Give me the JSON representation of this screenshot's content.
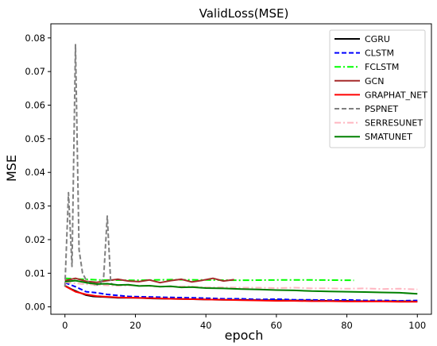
{
  "chart_data": {
    "type": "line",
    "title": "ValidLoss(MSE)",
    "xlabel": "epoch",
    "ylabel": "MSE",
    "xlim": [
      -4,
      104
    ],
    "ylim": [
      -0.0022,
      0.0842
    ],
    "xticks": [
      0,
      20,
      40,
      60,
      80,
      100
    ],
    "yticks": [
      0.0,
      0.01,
      0.02,
      0.03,
      0.04,
      0.05,
      0.06,
      0.07,
      0.08
    ],
    "ytick_labels": [
      "0.00",
      "0.01",
      "0.02",
      "0.03",
      "0.04",
      "0.05",
      "0.06",
      "0.07",
      "0.08"
    ],
    "grid": false,
    "legend_position": "top-right",
    "series": [
      {
        "name": "CGRU",
        "color": "#000000",
        "dash": "solid",
        "points": [
          [
            0,
            0.0063
          ],
          [
            2,
            0.0052
          ],
          [
            4,
            0.0043
          ],
          [
            6,
            0.0035
          ],
          [
            8,
            0.0031
          ],
          [
            10,
            0.003
          ],
          [
            12,
            0.0029
          ],
          [
            15,
            0.0027
          ],
          [
            20,
            0.0027
          ],
          [
            25,
            0.0025
          ],
          [
            30,
            0.0024
          ],
          [
            35,
            0.0023
          ],
          [
            40,
            0.0022
          ],
          [
            45,
            0.0021
          ],
          [
            50,
            0.0021
          ],
          [
            55,
            0.002
          ],
          [
            60,
            0.002
          ],
          [
            65,
            0.0019
          ],
          [
            70,
            0.0019
          ],
          [
            75,
            0.0018
          ],
          [
            80,
            0.0018
          ],
          [
            85,
            0.0017
          ],
          [
            90,
            0.0017
          ],
          [
            95,
            0.0017
          ],
          [
            100,
            0.0016
          ]
        ]
      },
      {
        "name": "CLSTM",
        "color": "#0000ff",
        "dash": "dashed",
        "points": [
          [
            0,
            0.0072
          ],
          [
            3,
            0.006
          ],
          [
            6,
            0.0045
          ],
          [
            9,
            0.0042
          ],
          [
            12,
            0.0037
          ],
          [
            15,
            0.0034
          ],
          [
            18,
            0.0031
          ],
          [
            22,
            0.003
          ],
          [
            26,
            0.0029
          ],
          [
            30,
            0.0028
          ],
          [
            35,
            0.0027
          ],
          [
            40,
            0.0026
          ],
          [
            45,
            0.0024
          ],
          [
            50,
            0.0024
          ],
          [
            55,
            0.0022
          ],
          [
            60,
            0.0023
          ],
          [
            65,
            0.0021
          ],
          [
            70,
            0.0021
          ],
          [
            75,
            0.002
          ],
          [
            80,
            0.0021
          ],
          [
            85,
            0.0019
          ],
          [
            90,
            0.0019
          ],
          [
            95,
            0.0018
          ],
          [
            100,
            0.0019
          ]
        ]
      },
      {
        "name": "FCLSTM",
        "color": "#00ff00",
        "dash": "dashdot",
        "points": [
          [
            0,
            0.0085
          ],
          [
            5,
            0.0082
          ],
          [
            10,
            0.008
          ],
          [
            20,
            0.0079
          ],
          [
            30,
            0.0081
          ],
          [
            40,
            0.008
          ],
          [
            50,
            0.0079
          ],
          [
            60,
            0.008
          ],
          [
            70,
            0.008
          ],
          [
            82,
            0.0079
          ]
        ]
      },
      {
        "name": "GCN",
        "color": "#a52a2a",
        "dash": "solid",
        "points": [
          [
            0,
            0.0078
          ],
          [
            3,
            0.0085
          ],
          [
            6,
            0.0076
          ],
          [
            9,
            0.0073
          ],
          [
            12,
            0.0078
          ],
          [
            15,
            0.0082
          ],
          [
            18,
            0.0077
          ],
          [
            21,
            0.0075
          ],
          [
            24,
            0.008
          ],
          [
            27,
            0.0072
          ],
          [
            30,
            0.0078
          ],
          [
            33,
            0.0082
          ],
          [
            36,
            0.0074
          ],
          [
            39,
            0.0079
          ],
          [
            42,
            0.0085
          ],
          [
            45,
            0.0077
          ],
          [
            48,
            0.0081
          ]
        ]
      },
      {
        "name": "GRAPHAT_NET",
        "color": "#ff0000",
        "dash": "solid",
        "points": [
          [
            0,
            0.0062
          ],
          [
            3,
            0.0045
          ],
          [
            6,
            0.0037
          ],
          [
            9,
            0.0032
          ],
          [
            12,
            0.003
          ],
          [
            15,
            0.0028
          ],
          [
            20,
            0.0027
          ],
          [
            25,
            0.0026
          ],
          [
            30,
            0.0024
          ],
          [
            35,
            0.0023
          ],
          [
            40,
            0.0022
          ],
          [
            45,
            0.0021
          ],
          [
            50,
            0.002
          ],
          [
            55,
            0.0019
          ],
          [
            60,
            0.0018
          ],
          [
            65,
            0.0018
          ],
          [
            70,
            0.0017
          ],
          [
            75,
            0.0017
          ],
          [
            80,
            0.0016
          ],
          [
            85,
            0.0016
          ],
          [
            90,
            0.0016
          ],
          [
            95,
            0.0015
          ],
          [
            100,
            0.0015
          ]
        ]
      },
      {
        "name": "PSPNET",
        "color": "#808080",
        "dash": "dashed",
        "points": [
          [
            0,
            0.006
          ],
          [
            1,
            0.034
          ],
          [
            2,
            0.012
          ],
          [
            3,
            0.078
          ],
          [
            4,
            0.017
          ],
          [
            5,
            0.01
          ],
          [
            6,
            0.008
          ],
          [
            7,
            0.007
          ],
          [
            8,
            0.0065
          ],
          [
            9,
            0.0065
          ],
          [
            10,
            0.0068
          ],
          [
            11,
            0.009
          ],
          [
            12,
            0.027
          ],
          [
            13,
            0.007
          ],
          [
            14,
            0.0065
          ]
        ]
      },
      {
        "name": "SERRESUNET",
        "color": "#ffb6c1",
        "dash": "dashdot",
        "points": [
          [
            0,
            0.0073
          ],
          [
            5,
            0.0068
          ],
          [
            10,
            0.0065
          ],
          [
            15,
            0.0063
          ],
          [
            20,
            0.0064
          ],
          [
            25,
            0.0061
          ],
          [
            30,
            0.006
          ],
          [
            35,
            0.0061
          ],
          [
            40,
            0.0058
          ],
          [
            45,
            0.0058
          ],
          [
            50,
            0.0057
          ],
          [
            55,
            0.0057
          ],
          [
            60,
            0.0056
          ],
          [
            65,
            0.0057
          ],
          [
            70,
            0.0055
          ],
          [
            75,
            0.0055
          ],
          [
            80,
            0.0054
          ],
          [
            85,
            0.0055
          ],
          [
            90,
            0.0053
          ],
          [
            95,
            0.0054
          ],
          [
            100,
            0.0052
          ]
        ]
      },
      {
        "name": "SMATUNET",
        "color": "#008000",
        "dash": "solid",
        "points": [
          [
            0,
            0.0075
          ],
          [
            3,
            0.0078
          ],
          [
            6,
            0.0072
          ],
          [
            9,
            0.0068
          ],
          [
            12,
            0.0069
          ],
          [
            15,
            0.0065
          ],
          [
            18,
            0.0066
          ],
          [
            21,
            0.0062
          ],
          [
            24,
            0.0063
          ],
          [
            27,
            0.006
          ],
          [
            30,
            0.0061
          ],
          [
            33,
            0.0058
          ],
          [
            36,
            0.0059
          ],
          [
            40,
            0.0056
          ],
          [
            45,
            0.0055
          ],
          [
            50,
            0.0053
          ],
          [
            55,
            0.0052
          ],
          [
            60,
            0.005
          ],
          [
            65,
            0.0049
          ],
          [
            70,
            0.0047
          ],
          [
            75,
            0.0046
          ],
          [
            80,
            0.0045
          ],
          [
            85,
            0.0044
          ],
          [
            90,
            0.0043
          ],
          [
            95,
            0.0042
          ],
          [
            100,
            0.0039
          ]
        ]
      }
    ]
  }
}
